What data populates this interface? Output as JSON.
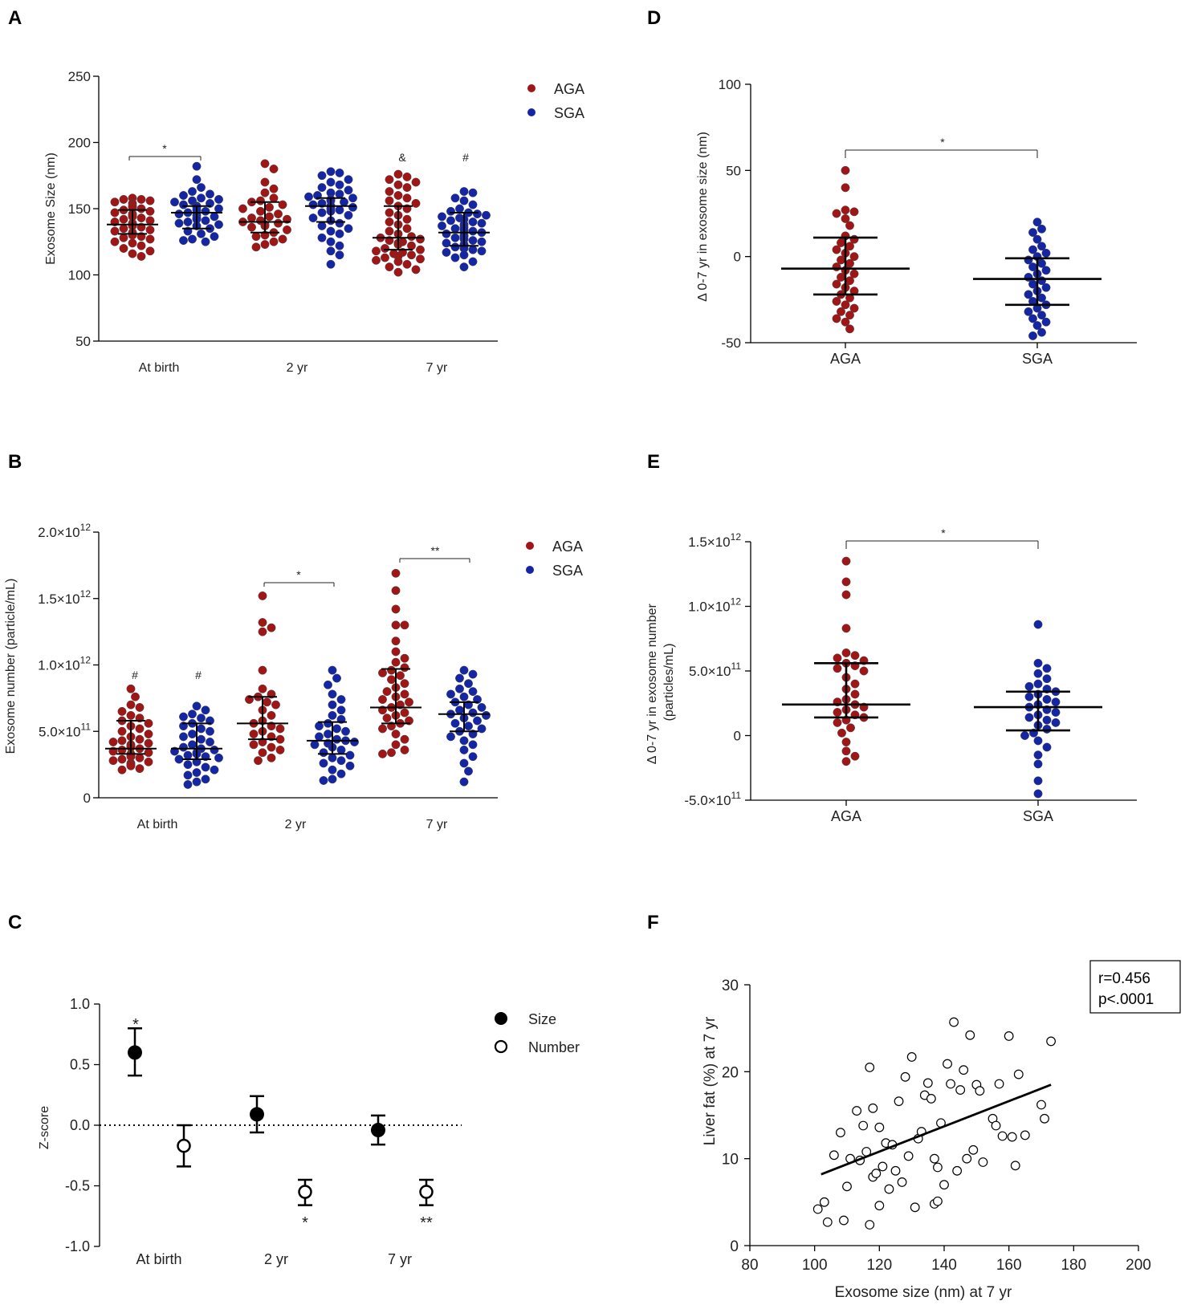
{
  "figure": {
    "colors": {
      "aga": "#a01616",
      "sga": "#1426a3",
      "axis": "#000000"
    },
    "panels": {
      "A": {
        "label": "A",
        "sig_left": "*",
        "sig_7yr_aga": "&",
        "sig_7yr_sga": "#"
      },
      "B": {
        "label": "B",
        "sig_birth_aga": "#",
        "sig_birth_sga": "#",
        "sig_2yr": "*",
        "sig_7yr": "**"
      },
      "C": {
        "label": "C",
        "sig_birth_size": "*",
        "sig_2yr_number": "*",
        "sig_7yr_number": "**"
      },
      "D": {
        "label": "D",
        "sig": "*"
      },
      "E": {
        "label": "E",
        "sig": "*"
      },
      "F": {
        "label": "F",
        "r_text": "r=0.456",
        "p_text": "p<.0001"
      }
    }
  },
  "chart_data": [
    {
      "id": "A",
      "type": "scatter",
      "title": "",
      "xlabel": "",
      "ylabel": "Exosome Size (nm)",
      "ylim": [
        50,
        250
      ],
      "yticks": [
        50,
        100,
        150,
        200,
        250
      ],
      "categories": [
        "At birth",
        "2 yr",
        "7 yr"
      ],
      "legend": [
        "AGA",
        "SGA"
      ],
      "legend_position": "top-right",
      "groups": [
        {
          "category": "At birth",
          "series": "AGA",
          "median": 138,
          "q1": 131,
          "q3": 149,
          "values": [
            158,
            157,
            157,
            156,
            155,
            154,
            152,
            151,
            150,
            149,
            148,
            147,
            146,
            145,
            144,
            143,
            142,
            141,
            140,
            139,
            138,
            138,
            137,
            136,
            135,
            134,
            133,
            132,
            131,
            130,
            129,
            128,
            127,
            125,
            124,
            122,
            120,
            118,
            116,
            114
          ]
        },
        {
          "category": "At birth",
          "series": "SGA",
          "median": 147,
          "q1": 135,
          "q3": 152,
          "values": [
            182,
            172,
            166,
            163,
            161,
            160,
            158,
            157,
            156,
            155,
            154,
            153,
            152,
            151,
            150,
            149,
            148,
            147,
            146,
            145,
            144,
            143,
            142,
            141,
            140,
            139,
            138,
            137,
            135,
            133,
            131,
            129,
            127,
            126,
            125
          ]
        },
        {
          "category": "2 yr",
          "series": "AGA",
          "median": 140,
          "q1": 132,
          "q3": 155,
          "values": [
            184,
            180,
            170,
            165,
            162,
            158,
            156,
            155,
            153,
            151,
            150,
            148,
            146,
            144,
            143,
            142,
            141,
            140,
            139,
            138,
            137,
            136,
            134,
            132,
            130,
            129,
            127,
            125,
            123,
            121
          ]
        },
        {
          "category": "2 yr",
          "series": "SGA",
          "median": 152,
          "q1": 140,
          "q3": 158,
          "values": [
            178,
            177,
            175,
            172,
            170,
            168,
            166,
            164,
            162,
            161,
            160,
            159,
            158,
            157,
            156,
            155,
            154,
            153,
            152,
            151,
            150,
            149,
            148,
            147,
            145,
            143,
            141,
            139,
            137,
            135,
            133,
            131,
            128,
            125,
            122,
            118,
            115,
            108
          ]
        },
        {
          "category": "7 yr",
          "series": "AGA",
          "median": 128,
          "q1": 119,
          "q3": 152,
          "values": [
            176,
            174,
            172,
            170,
            168,
            166,
            163,
            160,
            158,
            156,
            154,
            152,
            150,
            147,
            145,
            142,
            140,
            138,
            135,
            133,
            131,
            129,
            128,
            127,
            126,
            125,
            124,
            123,
            122,
            120,
            119,
            118,
            117,
            116,
            115,
            114,
            113,
            112,
            111,
            110,
            108,
            106,
            104,
            102
          ]
        },
        {
          "category": "7 yr",
          "series": "SGA",
          "median": 132,
          "q1": 122,
          "q3": 147,
          "values": [
            163,
            162,
            158,
            156,
            153,
            150,
            148,
            147,
            146,
            145,
            144,
            143,
            142,
            141,
            140,
            139,
            138,
            137,
            136,
            135,
            134,
            133,
            132,
            131,
            130,
            129,
            128,
            127,
            126,
            125,
            124,
            123,
            122,
            121,
            120,
            119,
            118,
            117,
            115,
            113,
            110,
            106
          ]
        }
      ]
    },
    {
      "id": "B",
      "type": "scatter",
      "title": "",
      "xlabel": "",
      "ylabel": "Exosome number (particle/mL)",
      "ylim": [
        0,
        2.0
      ],
      "y_unit": "×10^12",
      "yticks": [
        {
          "value": 0,
          "label": "0",
          "exp": ""
        },
        {
          "value": 0.5,
          "label": "5.0×10",
          "exp": "11"
        },
        {
          "value": 1.0,
          "label": "1.0×10",
          "exp": "12"
        },
        {
          "value": 1.5,
          "label": "1.5×10",
          "exp": "12"
        },
        {
          "value": 2.0,
          "label": "2.0×10",
          "exp": "12"
        }
      ],
      "categories": [
        "At birth",
        "2 yr",
        "7 yr"
      ],
      "legend": [
        "AGA",
        "SGA"
      ],
      "legend_position": "top-right",
      "groups": [
        {
          "category": "At birth",
          "series": "AGA",
          "median": 0.37,
          "q1": 0.33,
          "q3": 0.58,
          "values": [
            0.82,
            0.76,
            0.7,
            0.68,
            0.65,
            0.62,
            0.6,
            0.58,
            0.56,
            0.54,
            0.52,
            0.5,
            0.48,
            0.46,
            0.44,
            0.43,
            0.42,
            0.41,
            0.4,
            0.39,
            0.38,
            0.37,
            0.36,
            0.35,
            0.34,
            0.33,
            0.32,
            0.31,
            0.3,
            0.29,
            0.28,
            0.27,
            0.26,
            0.25,
            0.24,
            0.22,
            0.21
          ]
        },
        {
          "category": "At birth",
          "series": "SGA",
          "median": 0.37,
          "q1": 0.29,
          "q3": 0.56,
          "values": [
            0.69,
            0.66,
            0.63,
            0.61,
            0.6,
            0.58,
            0.56,
            0.54,
            0.52,
            0.5,
            0.48,
            0.46,
            0.44,
            0.42,
            0.4,
            0.38,
            0.37,
            0.36,
            0.35,
            0.34,
            0.33,
            0.32,
            0.31,
            0.3,
            0.29,
            0.27,
            0.25,
            0.23,
            0.21,
            0.19,
            0.17,
            0.14,
            0.12,
            0.1
          ]
        },
        {
          "category": "2 yr",
          "series": "AGA",
          "median": 0.56,
          "q1": 0.44,
          "q3": 0.76,
          "values": [
            1.52,
            1.32,
            1.28,
            1.25,
            0.96,
            0.82,
            0.78,
            0.76,
            0.74,
            0.72,
            0.7,
            0.66,
            0.62,
            0.58,
            0.56,
            0.54,
            0.52,
            0.5,
            0.48,
            0.46,
            0.44,
            0.42,
            0.4,
            0.38,
            0.36,
            0.34,
            0.3,
            0.28
          ]
        },
        {
          "category": "2 yr",
          "series": "SGA",
          "median": 0.43,
          "q1": 0.33,
          "q3": 0.57,
          "values": [
            0.96,
            0.9,
            0.85,
            0.78,
            0.74,
            0.7,
            0.66,
            0.62,
            0.59,
            0.56,
            0.54,
            0.52,
            0.5,
            0.48,
            0.46,
            0.44,
            0.43,
            0.42,
            0.41,
            0.4,
            0.38,
            0.36,
            0.34,
            0.32,
            0.3,
            0.28,
            0.26,
            0.24,
            0.21,
            0.18,
            0.14,
            0.13
          ]
        },
        {
          "category": "7 yr",
          "series": "AGA",
          "median": 0.68,
          "q1": 0.56,
          "q3": 0.97,
          "values": [
            1.69,
            1.56,
            1.42,
            1.3,
            1.3,
            1.18,
            1.1,
            1.05,
            1.02,
            0.98,
            0.96,
            0.94,
            0.92,
            0.89,
            0.86,
            0.83,
            0.8,
            0.78,
            0.76,
            0.74,
            0.72,
            0.7,
            0.68,
            0.66,
            0.64,
            0.62,
            0.6,
            0.58,
            0.56,
            0.54,
            0.52,
            0.48,
            0.44,
            0.4,
            0.36,
            0.34,
            0.33
          ]
        },
        {
          "category": "7 yr",
          "series": "SGA",
          "median": 0.63,
          "q1": 0.5,
          "q3": 0.72,
          "values": [
            0.96,
            0.93,
            0.9,
            0.86,
            0.82,
            0.8,
            0.78,
            0.76,
            0.74,
            0.72,
            0.7,
            0.68,
            0.66,
            0.64,
            0.63,
            0.62,
            0.6,
            0.58,
            0.56,
            0.54,
            0.52,
            0.5,
            0.48,
            0.46,
            0.43,
            0.4,
            0.36,
            0.31,
            0.26,
            0.2,
            0.12
          ]
        }
      ]
    },
    {
      "id": "C",
      "type": "scatter",
      "title": "",
      "xlabel": "",
      "ylabel": "Z-score",
      "ylim": [
        -1.0,
        1.0
      ],
      "yticks": [
        -1.0,
        -0.5,
        0.0,
        0.5,
        1.0
      ],
      "ytick_labels": [
        "-1.0",
        "-0.5",
        "0.0",
        "0.5",
        "1.0"
      ],
      "categories": [
        "At birth",
        "2 yr",
        "7 yr"
      ],
      "legend": [
        "Size",
        "Number"
      ],
      "legend_position": "top-right",
      "reference_line": 0.0,
      "series": [
        {
          "name": "Size",
          "filled": true,
          "values": [
            0.6,
            0.09,
            -0.04
          ],
          "err_low": [
            0.41,
            -0.06,
            -0.16
          ],
          "err_high": [
            0.8,
            0.24,
            0.08
          ]
        },
        {
          "name": "Number",
          "filled": false,
          "values": [
            -0.17,
            -0.55,
            -0.55
          ],
          "err_low": [
            -0.34,
            -0.66,
            -0.66
          ],
          "err_high": [
            0.0,
            -0.45,
            -0.45
          ]
        }
      ]
    },
    {
      "id": "D",
      "type": "scatter",
      "title": "",
      "xlabel": "",
      "ylabel": "Δ 0-7 yr in exosome size (nm)",
      "ylim": [
        -50,
        100
      ],
      "yticks": [
        -50,
        0,
        50,
        100
      ],
      "categories": [
        "AGA",
        "SGA"
      ],
      "groups": [
        {
          "category": "AGA",
          "series": "AGA",
          "median": -7,
          "q1": -22,
          "q3": 11,
          "values": [
            50,
            40,
            27,
            26,
            25,
            22,
            18,
            12,
            10,
            8,
            6,
            4,
            2,
            0,
            -2,
            -4,
            -6,
            -8,
            -10,
            -12,
            -14,
            -16,
            -18,
            -20,
            -22,
            -24,
            -26,
            -28,
            -30,
            -32,
            -34,
            -36,
            -38,
            -42
          ]
        },
        {
          "category": "SGA",
          "series": "SGA",
          "median": -13,
          "q1": -28,
          "q3": -1,
          "values": [
            20,
            16,
            14,
            10,
            6,
            4,
            2,
            0,
            -2,
            -4,
            -6,
            -8,
            -10,
            -12,
            -14,
            -16,
            -18,
            -20,
            -22,
            -24,
            -26,
            -28,
            -30,
            -32,
            -34,
            -36,
            -38,
            -40,
            -44,
            -46
          ]
        }
      ]
    },
    {
      "id": "E",
      "type": "scatter",
      "title": "",
      "xlabel": "",
      "ylabel": "Δ 0-7 yr in exosome number (particles/mL)",
      "ylim": [
        -0.5,
        1.5
      ],
      "y_unit": "×10^12",
      "yticks": [
        {
          "value": -0.5,
          "label": "-5.0×10",
          "exp": "11"
        },
        {
          "value": 0,
          "label": "0",
          "exp": ""
        },
        {
          "value": 0.5,
          "label": "5.0×10",
          "exp": "11"
        },
        {
          "value": 1.0,
          "label": "1.0×10",
          "exp": "12"
        },
        {
          "value": 1.5,
          "label": "1.5×10",
          "exp": "12"
        }
      ],
      "categories": [
        "AGA",
        "SGA"
      ],
      "groups": [
        {
          "category": "AGA",
          "series": "AGA",
          "median": 0.24,
          "q1": 0.14,
          "q3": 0.56,
          "values": [
            1.35,
            1.19,
            1.09,
            0.83,
            0.64,
            0.62,
            0.6,
            0.58,
            0.56,
            0.54,
            0.52,
            0.5,
            0.45,
            0.4,
            0.36,
            0.32,
            0.28,
            0.26,
            0.24,
            0.22,
            0.2,
            0.18,
            0.16,
            0.14,
            0.12,
            0.1,
            0.06,
            0.02,
            -0.05,
            -0.12,
            -0.16,
            -0.2
          ]
        },
        {
          "category": "SGA",
          "series": "SGA",
          "median": 0.22,
          "q1": 0.04,
          "q3": 0.34,
          "values": [
            0.86,
            0.56,
            0.52,
            0.48,
            0.44,
            0.4,
            0.38,
            0.36,
            0.34,
            0.32,
            0.3,
            0.28,
            0.26,
            0.24,
            0.22,
            0.2,
            0.18,
            0.16,
            0.14,
            0.12,
            0.1,
            0.08,
            0.05,
            0.02,
            0.0,
            -0.04,
            -0.09,
            -0.15,
            -0.22,
            -0.35,
            -0.45
          ]
        }
      ]
    },
    {
      "id": "F",
      "type": "scatter",
      "title": "",
      "xlabel": "Exosome size (nm) at 7 yr",
      "ylabel": "Liver fat (%) at 7 yr",
      "xlim": [
        80,
        200
      ],
      "ylim": [
        0,
        30
      ],
      "xticks": [
        80,
        100,
        120,
        140,
        160,
        180,
        200
      ],
      "yticks": [
        0,
        10,
        20,
        30
      ],
      "regression": {
        "x": [
          102,
          173
        ],
        "y": [
          8.2,
          18.5
        ]
      },
      "annotation": {
        "r": "r=0.456",
        "p": "p<.0001"
      },
      "x": [
        101,
        103,
        104,
        106,
        108,
        109,
        110,
        111,
        113,
        114,
        115,
        116,
        117,
        117,
        118,
        118,
        119,
        120,
        120,
        121,
        122,
        123,
        124,
        125,
        126,
        127,
        128,
        129,
        130,
        131,
        132,
        133,
        134,
        135,
        136,
        137,
        137,
        138,
        138,
        139,
        140,
        141,
        142,
        143,
        144,
        145,
        146,
        147,
        148,
        149,
        150,
        151,
        152,
        155,
        156,
        157,
        158,
        160,
        161,
        162,
        163,
        165,
        170,
        171,
        173
      ],
      "y": [
        4.2,
        5.0,
        2.7,
        10.4,
        13.0,
        2.9,
        6.8,
        10.0,
        15.5,
        9.8,
        13.8,
        10.8,
        20.5,
        2.4,
        7.9,
        15.8,
        8.3,
        13.6,
        4.6,
        9.1,
        11.8,
        6.5,
        11.6,
        8.6,
        16.6,
        7.3,
        19.4,
        10.3,
        21.7,
        4.4,
        12.3,
        13.1,
        17.3,
        18.7,
        16.9,
        4.8,
        10.0,
        5.1,
        9.0,
        14.1,
        7.0,
        20.9,
        18.6,
        25.7,
        8.6,
        17.9,
        20.2,
        10.0,
        24.2,
        11.0,
        18.5,
        17.8,
        9.6,
        14.6,
        13.8,
        18.6,
        12.6,
        24.1,
        12.5,
        9.2,
        19.7,
        12.7,
        16.2,
        14.6,
        23.5
      ]
    }
  ]
}
